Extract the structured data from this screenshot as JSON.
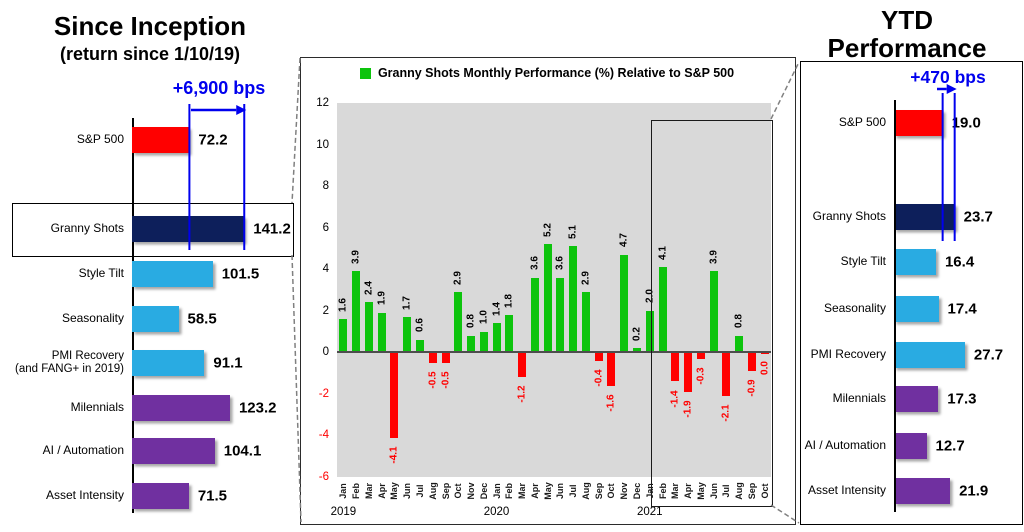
{
  "colors": {
    "red": "#FF0000",
    "navy": "#0D1F5B",
    "light_blue": "#29ABE2",
    "purple": "#7030A0",
    "green": "#0DC40D",
    "annotation_blue": "#0000EE",
    "plot_background": "#D9D9D9",
    "negative_tick_red": "#FF0000"
  },
  "chart_data": [
    {
      "id": "since_inception",
      "type": "bar",
      "orientation": "horizontal",
      "title": "Since Inception",
      "subtitle": "(return since 1/10/19)",
      "annotation": "+6,900 bps",
      "categories": [
        "S&P 500",
        "Granny Shots",
        "Style Tilt",
        "Seasonality",
        "PMI Recovery\n(and FANG+ in 2019)",
        "Milennials",
        "AI / Automation",
        "Asset Intensity"
      ],
      "values": [
        72.2,
        141.2,
        101.5,
        58.5,
        91.1,
        123.2,
        104.1,
        71.5
      ],
      "bar_colors": [
        "#FF0000",
        "#0D1F5B",
        "#29ABE2",
        "#29ABE2",
        "#29ABE2",
        "#7030A0",
        "#7030A0",
        "#7030A0"
      ],
      "highlight_index": 1
    },
    {
      "id": "monthly_relative_performance",
      "type": "bar",
      "orientation": "vertical",
      "title": "Granny Shots Monthly Performance (%) Relative to S&P 500",
      "legend_position": "top-center",
      "plot_bg": "#D9D9D9",
      "positive_color": "#0DC40D",
      "negative_color": "#FF0000",
      "ylim": [
        -6,
        12
      ],
      "yticks": [
        12,
        10,
        8,
        6,
        4,
        2,
        0,
        -2,
        -4,
        -6
      ],
      "months": [
        "Jan",
        "Feb",
        "Mar",
        "Apr",
        "May",
        "Jun",
        "Jul",
        "Aug",
        "Sep",
        "Oct",
        "Nov",
        "Dec",
        "Jan",
        "Feb",
        "Mar",
        "Apr",
        "May",
        "Jun",
        "Jul",
        "Aug",
        "Sep",
        "Oct",
        "Nov",
        "Dec",
        "Jan",
        "Feb",
        "Mar",
        "Apr",
        "May",
        "Jun",
        "Jul",
        "Aug",
        "Sep",
        "Oct"
      ],
      "values": [
        1.6,
        3.9,
        2.4,
        1.9,
        -4.1,
        1.7,
        0.6,
        -0.5,
        -0.5,
        2.9,
        0.8,
        1.0,
        1.4,
        1.8,
        -1.2,
        3.6,
        5.2,
        3.6,
        5.1,
        2.9,
        -0.4,
        -1.6,
        4.7,
        0.2,
        2.0,
        4.1,
        -1.4,
        -1.9,
        -0.3,
        3.9,
        -2.1,
        0.8,
        -0.9,
        -0.0
      ],
      "years": [
        {
          "label": "2019",
          "start_index": 0
        },
        {
          "label": "2020",
          "start_index": 12
        },
        {
          "label": "2021",
          "start_index": 24
        }
      ],
      "boxed_region": "2021"
    },
    {
      "id": "ytd_performance",
      "type": "bar",
      "orientation": "horizontal",
      "title": "YTD Performance",
      "title_line1": "YTD",
      "title_line2": "Performance",
      "annotation": "+470 bps",
      "categories": [
        "S&P 500",
        "Granny Shots",
        "Style Tilt",
        "Seasonality",
        "PMI Recovery",
        "Milennials",
        "AI / Automation",
        "Asset Intensity"
      ],
      "values": [
        19.0,
        23.7,
        16.4,
        17.4,
        27.7,
        17.3,
        12.7,
        21.9
      ],
      "bar_colors": [
        "#FF0000",
        "#0D1F5B",
        "#29ABE2",
        "#29ABE2",
        "#29ABE2",
        "#7030A0",
        "#7030A0",
        "#7030A0"
      ]
    }
  ]
}
